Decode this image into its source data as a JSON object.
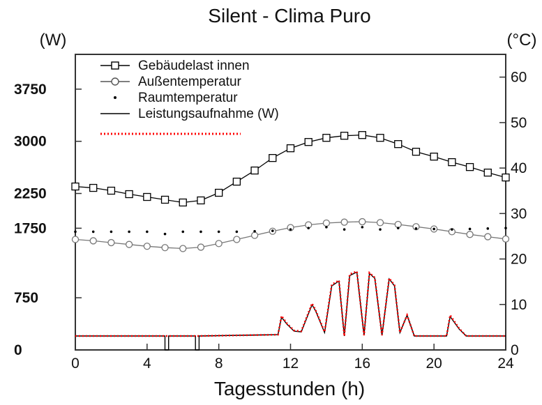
{
  "chart_data": {
    "type": "line",
    "title": "Silent - Clima Puro",
    "xlabel": "Tagesstunden (h)",
    "left_unit": "(W)",
    "right_unit": "(°C)",
    "xlim": [
      0,
      24
    ],
    "ylim_left": [
      0,
      4250
    ],
    "ylim_right": [
      0,
      65
    ],
    "x_ticks": [
      0,
      4,
      8,
      12,
      16,
      20,
      24
    ],
    "left_ticks": [
      0,
      750,
      1750,
      2250,
      3000,
      3750
    ],
    "right_ticks": [
      0,
      10,
      20,
      30,
      40,
      50,
      60
    ],
    "grid": false,
    "legend_position": "top-left",
    "series": [
      {
        "name": "Gebäudelast innen",
        "axis": "left",
        "marker": "square",
        "color": "#000000",
        "x": [
          0,
          1,
          2,
          3,
          4,
          5,
          6,
          7,
          8,
          9,
          10,
          11,
          12,
          13,
          14,
          15,
          16,
          17,
          18,
          19,
          20,
          21,
          22,
          23,
          24
        ],
        "values": [
          2350,
          2330,
          2290,
          2240,
          2200,
          2160,
          2120,
          2150,
          2260,
          2420,
          2580,
          2760,
          2900,
          2990,
          3050,
          3080,
          3090,
          3050,
          2960,
          2850,
          2780,
          2700,
          2630,
          2550,
          2480
        ]
      },
      {
        "name": "Außentemperatur",
        "axis": "right",
        "marker": "circle",
        "color": "#777777",
        "x": [
          0,
          1,
          2,
          3,
          4,
          5,
          6,
          7,
          8,
          9,
          10,
          11,
          12,
          13,
          14,
          15,
          16,
          17,
          18,
          19,
          20,
          21,
          22,
          23,
          24
        ],
        "values": [
          24.3,
          24.0,
          23.6,
          23.2,
          22.8,
          22.5,
          22.3,
          22.6,
          23.4,
          24.3,
          25.2,
          26.1,
          26.9,
          27.5,
          27.9,
          28.1,
          28.2,
          28.0,
          27.6,
          27.1,
          26.6,
          26.0,
          25.4,
          24.9,
          24.4
        ]
      },
      {
        "name": "Raumtemperatur",
        "axis": "right",
        "marker": "dot",
        "color": "#000000",
        "x": [
          0,
          1,
          2,
          3,
          4,
          5,
          6,
          7,
          8,
          9,
          10,
          11,
          12,
          13,
          14,
          15,
          16,
          17,
          18,
          19,
          20,
          21,
          22,
          23,
          24
        ],
        "values": [
          26.0,
          26.0,
          26.0,
          26.0,
          26.0,
          25.5,
          26.0,
          26.0,
          26.0,
          26.0,
          26.1,
          26.2,
          26.5,
          26.8,
          27.0,
          26.5,
          27.0,
          26.5,
          26.8,
          26.7,
          26.6,
          26.5,
          26.6,
          26.7,
          26.8
        ]
      },
      {
        "name": "Leistungsaufnahme (W)",
        "axis": "left",
        "marker": "line",
        "color": "#000000",
        "x": [
          0,
          4.9,
          5.0,
          5.0,
          5.2,
          5.2,
          6.6,
          6.7,
          6.7,
          6.9,
          6.9,
          11.3,
          11.5,
          11.8,
          12.2,
          12.6,
          13.2,
          13.4,
          13.9,
          14.3,
          14.7,
          15.0,
          15.3,
          15.7,
          16.1,
          16.4,
          16.7,
          17.1,
          17.5,
          17.8,
          18.1,
          18.5,
          18.9,
          19.2,
          19.5,
          20.7,
          20.9,
          21.4,
          21.8,
          24
        ],
        "values": [
          200,
          200,
          200,
          0,
          0,
          200,
          200,
          200,
          0,
          0,
          200,
          220,
          470,
          370,
          270,
          260,
          650,
          560,
          250,
          920,
          990,
          200,
          1070,
          1120,
          210,
          1100,
          1030,
          210,
          1020,
          920,
          250,
          500,
          200,
          200,
          200,
          200,
          480,
          300,
          200,
          200
        ]
      },
      {
        "name": "",
        "axis": "left",
        "marker": "dotted",
        "color": "#ff0000",
        "x": [
          0,
          5.0,
          5.2,
          6.7,
          6.9,
          11.3,
          11.5,
          11.8,
          12.2,
          12.6,
          13.2,
          13.4,
          13.9,
          14.3,
          14.7,
          15.0,
          15.3,
          15.7,
          16.1,
          16.4,
          16.7,
          17.1,
          17.5,
          17.8,
          18.1,
          18.5,
          18.9,
          20.7,
          20.9,
          21.4,
          21.8,
          24
        ],
        "values": [
          200,
          200,
          200,
          200,
          200,
          220,
          490,
          380,
          280,
          270,
          670,
          570,
          260,
          940,
          1000,
          200,
          1090,
          1130,
          210,
          1110,
          1040,
          210,
          1030,
          930,
          250,
          500,
          200,
          200,
          500,
          310,
          200,
          200
        ]
      }
    ]
  }
}
